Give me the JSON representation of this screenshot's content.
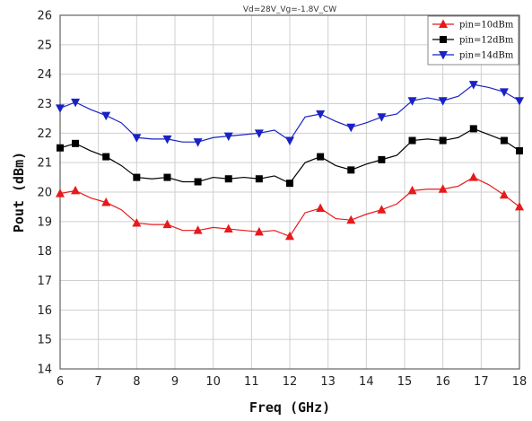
{
  "chart_data": {
    "type": "line",
    "title": "Vd=28V_Vg=-1.8V_CW",
    "xlabel": "Freq (GHz)",
    "ylabel": "Pout (dBm)",
    "xlim": [
      6,
      18
    ],
    "ylim": [
      14,
      26
    ],
    "xticks": [
      "6",
      "7",
      "8",
      "9",
      "10",
      "11",
      "12",
      "13",
      "14",
      "15",
      "16",
      "17",
      "18"
    ],
    "yticks": [
      "14",
      "15",
      "16",
      "17",
      "18",
      "19",
      "20",
      "21",
      "22",
      "23",
      "24",
      "25",
      "26"
    ],
    "grid": true,
    "legend_position": "top-right",
    "x": [
      6,
      6.4,
      6.8,
      7.2,
      7.6,
      8.0,
      8.4,
      8.8,
      9.2,
      9.6,
      10.0,
      10.4,
      10.8,
      11.2,
      11.6,
      12.0,
      12.4,
      12.8,
      13.2,
      13.6,
      14.0,
      14.4,
      14.8,
      15.2,
      15.6,
      16.0,
      16.4,
      16.8,
      17.2,
      17.6,
      18.0
    ],
    "series": [
      {
        "name": "pin=10dBm",
        "marker": "triangle-up",
        "color": "#e8191b",
        "values": [
          19.95,
          20.05,
          19.8,
          19.65,
          19.4,
          18.95,
          18.9,
          18.9,
          18.7,
          18.7,
          18.8,
          18.75,
          18.7,
          18.65,
          18.7,
          18.5,
          19.3,
          19.45,
          19.1,
          19.05,
          19.25,
          19.4,
          19.6,
          20.05,
          20.1,
          20.1,
          20.2,
          20.5,
          20.25,
          19.9,
          19.5
        ]
      },
      {
        "name": "pin=12dBm",
        "marker": "square",
        "color": "#000000",
        "values": [
          21.5,
          21.65,
          21.4,
          21.2,
          20.9,
          20.5,
          20.45,
          20.5,
          20.35,
          20.35,
          20.5,
          20.45,
          20.5,
          20.45,
          20.55,
          20.3,
          21.0,
          21.2,
          20.9,
          20.75,
          20.95,
          21.1,
          21.25,
          21.75,
          21.8,
          21.75,
          21.85,
          22.15,
          21.95,
          21.75,
          21.4
        ]
      },
      {
        "name": "pin=14dBm",
        "marker": "triangle-down",
        "color": "#1a22c4",
        "values": [
          22.85,
          23.05,
          22.8,
          22.6,
          22.35,
          21.85,
          21.8,
          21.8,
          21.7,
          21.7,
          21.85,
          21.9,
          21.95,
          22.0,
          22.1,
          21.75,
          22.55,
          22.65,
          22.4,
          22.2,
          22.35,
          22.55,
          22.65,
          23.1,
          23.2,
          23.1,
          23.25,
          23.65,
          23.55,
          23.4,
          23.1
        ]
      }
    ]
  }
}
